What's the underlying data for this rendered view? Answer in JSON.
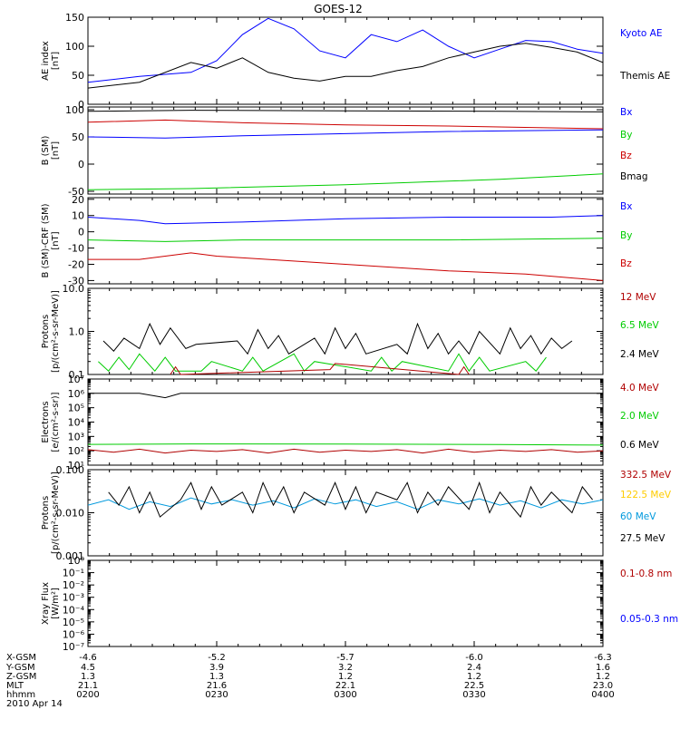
{
  "title": "GOES-12",
  "colors": {
    "black": "#000000",
    "blue": "#0000ff",
    "green": "#00cc00",
    "red": "#cc0000",
    "darkred": "#b00000",
    "orange": "#ffcc00",
    "cyan": "#0099dd"
  },
  "chart_data": [
    {
      "type": "line",
      "ylabel": [
        "AE index",
        "[nT]"
      ],
      "yscale": "linear",
      "ylim": [
        0,
        150
      ],
      "yticks": [
        {
          "v": 0,
          "t": "0"
        },
        {
          "v": 50,
          "t": "50"
        },
        {
          "v": 100,
          "t": "100"
        },
        {
          "v": 150,
          "t": "150"
        }
      ],
      "legend": [
        {
          "name": "Kyoto AE",
          "color": "#0000ff"
        },
        {
          "name": "Themis AE",
          "color": "#000000"
        }
      ],
      "series": [
        {
          "name": "Kyoto AE",
          "color": "#0000ff",
          "x": [
            0,
            0.1,
            0.2,
            0.25,
            0.3,
            0.35,
            0.4,
            0.45,
            0.5,
            0.55,
            0.6,
            0.65,
            0.7,
            0.75,
            0.8,
            0.85,
            0.9,
            0.95,
            1.0
          ],
          "y": [
            38,
            48,
            55,
            75,
            120,
            148,
            130,
            92,
            80,
            120,
            108,
            128,
            100,
            80,
            95,
            110,
            108,
            95,
            88
          ]
        },
        {
          "name": "Themis AE",
          "color": "#000000",
          "x": [
            0,
            0.1,
            0.2,
            0.25,
            0.3,
            0.35,
            0.4,
            0.45,
            0.5,
            0.55,
            0.6,
            0.65,
            0.7,
            0.75,
            0.8,
            0.85,
            0.9,
            0.95,
            1.0
          ],
          "y": [
            28,
            38,
            72,
            62,
            80,
            55,
            45,
            40,
            48,
            48,
            58,
            65,
            80,
            90,
            100,
            105,
            98,
            90,
            72
          ]
        }
      ]
    },
    {
      "type": "line",
      "ylabel": [
        "B (SM)",
        "[nT]"
      ],
      "yscale": "linear",
      "ylim": [
        -55,
        105
      ],
      "yticks": [
        {
          "v": -50,
          "t": "-50"
        },
        {
          "v": 0,
          "t": "0"
        },
        {
          "v": 50,
          "t": "50"
        },
        {
          "v": 100,
          "t": "100"
        }
      ],
      "legend": [
        {
          "name": "Bx",
          "color": "#0000ff"
        },
        {
          "name": "By",
          "color": "#00cc00"
        },
        {
          "name": "Bz",
          "color": "#cc0000"
        },
        {
          "name": "Bmag",
          "color": "#000000"
        }
      ],
      "series": [
        {
          "name": "Bmag",
          "color": "#000000",
          "x": [
            0,
            0.2,
            0.5,
            0.8,
            1.0
          ],
          "y": [
            97,
            99,
            98,
            97,
            96
          ]
        },
        {
          "name": "Bz",
          "color": "#cc0000",
          "x": [
            0,
            0.15,
            0.3,
            0.5,
            0.7,
            1.0
          ],
          "y": [
            77,
            81,
            76,
            72,
            70,
            65
          ]
        },
        {
          "name": "Bx",
          "color": "#0000ff",
          "x": [
            0,
            0.15,
            0.3,
            0.5,
            0.7,
            1.0
          ],
          "y": [
            50,
            48,
            52,
            56,
            60,
            63
          ]
        },
        {
          "name": "By",
          "color": "#00cc00",
          "x": [
            0,
            0.2,
            0.5,
            0.8,
            1.0
          ],
          "y": [
            -47,
            -45,
            -38,
            -28,
            -18
          ]
        }
      ]
    },
    {
      "type": "line",
      "ylabel": [
        "B (SM)-CRF (SM)",
        "[nT]"
      ],
      "yscale": "linear",
      "ylim": [
        -32,
        21
      ],
      "yticks": [
        {
          "v": -30,
          "t": "-30"
        },
        {
          "v": -20,
          "t": "-20"
        },
        {
          "v": -10,
          "t": "-10"
        },
        {
          "v": 0,
          "t": "0"
        },
        {
          "v": 10,
          "t": "10"
        },
        {
          "v": 20,
          "t": "20"
        }
      ],
      "legend": [
        {
          "name": "Bx",
          "color": "#0000ff"
        },
        {
          "name": "By",
          "color": "#00cc00"
        },
        {
          "name": "Bz",
          "color": "#cc0000"
        }
      ],
      "series": [
        {
          "name": "Bx",
          "color": "#0000ff",
          "x": [
            0,
            0.1,
            0.15,
            0.3,
            0.5,
            0.7,
            0.9,
            1.0
          ],
          "y": [
            9,
            7,
            5,
            6,
            8,
            9,
            9,
            10
          ]
        },
        {
          "name": "By",
          "color": "#00cc00",
          "x": [
            0,
            0.15,
            0.3,
            0.5,
            0.7,
            1.0
          ],
          "y": [
            -5,
            -6,
            -5,
            -5,
            -5,
            -4
          ]
        },
        {
          "name": "Bz",
          "color": "#cc0000",
          "x": [
            0,
            0.1,
            0.2,
            0.25,
            0.35,
            0.5,
            0.7,
            0.85,
            1.0
          ],
          "y": [
            -17,
            -17,
            -13,
            -15,
            -17,
            -20,
            -24,
            -26,
            -30
          ]
        }
      ]
    },
    {
      "type": "line",
      "ylabel": [
        "Protons",
        "[p/(cm²-s-sr-MeV)]"
      ],
      "yscale": "log",
      "ylim": [
        0.1,
        10
      ],
      "yticks": [
        {
          "v": 0.1,
          "t": "0.1"
        },
        {
          "v": 1,
          "t": "1.0"
        },
        {
          "v": 10,
          "t": "10.0"
        }
      ],
      "legend": [
        {
          "name": "12 MeV",
          "color": "#b00000"
        },
        {
          "name": "6.5 MeV",
          "color": "#00cc00"
        },
        {
          "name": "2.4 MeV",
          "color": "#000000"
        }
      ],
      "series": [
        {
          "name": "2.4 MeV",
          "color": "#000000",
          "x": [
            0.03,
            0.05,
            0.07,
            0.1,
            0.12,
            0.14,
            0.16,
            0.19,
            0.21,
            0.29,
            0.31,
            0.33,
            0.35,
            0.37,
            0.39,
            0.44,
            0.46,
            0.48,
            0.5,
            0.52,
            0.54,
            0.6,
            0.62,
            0.64,
            0.66,
            0.68,
            0.7,
            0.72,
            0.74,
            0.76,
            0.8,
            0.82,
            0.84,
            0.86,
            0.88,
            0.9,
            0.92,
            0.94
          ],
          "y": [
            0.6,
            0.35,
            0.7,
            0.4,
            1.5,
            0.5,
            1.2,
            0.4,
            0.5,
            0.6,
            0.3,
            1.1,
            0.4,
            0.8,
            0.3,
            0.7,
            0.3,
            1.2,
            0.4,
            0.9,
            0.3,
            0.5,
            0.3,
            1.5,
            0.4,
            0.9,
            0.3,
            0.6,
            0.3,
            1.0,
            0.3,
            1.2,
            0.4,
            0.8,
            0.3,
            0.7,
            0.4,
            0.6
          ]
        },
        {
          "name": "6.5 MeV",
          "color": "#00cc00",
          "x": [
            0.02,
            0.04,
            0.06,
            0.08,
            0.1,
            0.13,
            0.15,
            0.17,
            0.22,
            0.24,
            0.3,
            0.32,
            0.34,
            0.4,
            0.42,
            0.44,
            0.55,
            0.57,
            0.59,
            0.61,
            0.7,
            0.72,
            0.74,
            0.76,
            0.78,
            0.85,
            0.87,
            0.89
          ],
          "y": [
            0.2,
            0.12,
            0.25,
            0.13,
            0.3,
            0.12,
            0.25,
            0.12,
            0.12,
            0.2,
            0.12,
            0.25,
            0.12,
            0.3,
            0.12,
            0.2,
            0.12,
            0.25,
            0.12,
            0.2,
            0.12,
            0.3,
            0.12,
            0.25,
            0.12,
            0.2,
            0.12,
            0.25
          ]
        },
        {
          "name": "12 MeV",
          "color": "#b00000",
          "x": [
            0.16,
            0.17,
            0.18,
            0.47,
            0.48,
            0.72,
            0.73,
            0.74
          ],
          "y": [
            0.1,
            0.15,
            0.1,
            0.13,
            0.18,
            0.1,
            0.15,
            0.1
          ]
        }
      ]
    },
    {
      "type": "line",
      "ylabel": [
        "Electrons",
        "[e/(cm²-s-sr)]"
      ],
      "yscale": "log",
      "ylim": [
        10,
        10000000
      ],
      "yticks": [
        {
          "v": 10,
          "t": "10¹"
        },
        {
          "v": 100,
          "t": "10²"
        },
        {
          "v": 1000,
          "t": "10³"
        },
        {
          "v": 10000,
          "t": "10⁴"
        },
        {
          "v": 100000,
          "t": "10⁵"
        },
        {
          "v": 1000000,
          "t": "10⁶"
        },
        {
          "v": 10000000,
          "t": "10⁷"
        }
      ],
      "legend": [
        {
          "name": "4.0 MeV",
          "color": "#b00000"
        },
        {
          "name": "2.0 MeV",
          "color": "#00cc00"
        },
        {
          "name": "0.6 MeV",
          "color": "#000000"
        }
      ],
      "series": [
        {
          "name": "0.6 MeV",
          "color": "#000000",
          "x": [
            0,
            0.1,
            0.15,
            0.18,
            0.3,
            0.5,
            0.7,
            0.9,
            1.0
          ],
          "y": [
            1000000,
            1000000,
            500000,
            1000000,
            1000000,
            1000000,
            1000000,
            1000000,
            1000000
          ]
        },
        {
          "name": "2.0 MeV",
          "color": "#00cc00",
          "x": [
            0,
            0.2,
            0.5,
            0.8,
            1.0
          ],
          "y": [
            280,
            300,
            290,
            270,
            250
          ]
        },
        {
          "name": "4.0 MeV",
          "color": "#b00000",
          "x": [
            0,
            0.05,
            0.1,
            0.15,
            0.2,
            0.25,
            0.3,
            0.35,
            0.4,
            0.45,
            0.5,
            0.55,
            0.6,
            0.65,
            0.7,
            0.75,
            0.8,
            0.85,
            0.9,
            0.95,
            1.0
          ],
          "y": [
            120,
            80,
            130,
            70,
            110,
            90,
            120,
            70,
            130,
            80,
            110,
            90,
            120,
            70,
            130,
            80,
            110,
            90,
            120,
            80,
            100
          ]
        }
      ]
    },
    {
      "type": "line",
      "ylabel": [
        "Protons",
        "[p/(cm²-s-sr-MeV)]"
      ],
      "yscale": "log",
      "ylim": [
        0.001,
        0.1
      ],
      "yticks": [
        {
          "v": 0.001,
          "t": "0.001"
        },
        {
          "v": 0.01,
          "t": "0.010"
        },
        {
          "v": 0.1,
          "t": "0.100"
        }
      ],
      "legend": [
        {
          "name": "332.5 MeV",
          "color": "#b00000"
        },
        {
          "name": "122.5 MeV",
          "color": "#ffcc00"
        },
        {
          "name": "60 MeV",
          "color": "#0099dd"
        },
        {
          "name": "27.5 MeV",
          "color": "#000000"
        }
      ],
      "series": [
        {
          "name": "60 MeV",
          "color": "#0099dd",
          "x": [
            0,
            0.04,
            0.08,
            0.12,
            0.16,
            0.2,
            0.24,
            0.28,
            0.32,
            0.36,
            0.4,
            0.44,
            0.48,
            0.52,
            0.56,
            0.6,
            0.64,
            0.68,
            0.72,
            0.76,
            0.8,
            0.84,
            0.88,
            0.92,
            0.96,
            1.0
          ],
          "y": [
            0.015,
            0.02,
            0.012,
            0.018,
            0.014,
            0.022,
            0.016,
            0.02,
            0.015,
            0.019,
            0.013,
            0.021,
            0.016,
            0.02,
            0.014,
            0.018,
            0.012,
            0.02,
            0.016,
            0.021,
            0.015,
            0.019,
            0.013,
            0.02,
            0.016,
            0.02
          ]
        },
        {
          "name": "27.5 MeV",
          "color": "#000000",
          "x": [
            0.04,
            0.06,
            0.08,
            0.1,
            0.12,
            0.14,
            0.18,
            0.2,
            0.22,
            0.24,
            0.26,
            0.3,
            0.32,
            0.34,
            0.36,
            0.38,
            0.4,
            0.42,
            0.46,
            0.48,
            0.5,
            0.52,
            0.54,
            0.56,
            0.6,
            0.62,
            0.64,
            0.66,
            0.68,
            0.7,
            0.74,
            0.76,
            0.78,
            0.8,
            0.84,
            0.86,
            0.88,
            0.9,
            0.94,
            0.96,
            0.98
          ],
          "y": [
            0.03,
            0.015,
            0.04,
            0.01,
            0.03,
            0.008,
            0.02,
            0.05,
            0.012,
            0.04,
            0.015,
            0.03,
            0.01,
            0.05,
            0.015,
            0.04,
            0.01,
            0.03,
            0.015,
            0.05,
            0.012,
            0.04,
            0.01,
            0.03,
            0.02,
            0.05,
            0.01,
            0.03,
            0.015,
            0.04,
            0.012,
            0.05,
            0.01,
            0.03,
            0.008,
            0.04,
            0.015,
            0.03,
            0.01,
            0.04,
            0.02
          ]
        }
      ]
    },
    {
      "type": "line",
      "ylabel": [
        "Xray Flux",
        "[W/m²]"
      ],
      "yscale": "log",
      "ylim": [
        1e-07,
        1
      ],
      "yticks": [
        {
          "v": 1e-07,
          "t": "10⁻⁷"
        },
        {
          "v": 1e-06,
          "t": "10⁻⁶"
        },
        {
          "v": 1e-05,
          "t": "10⁻⁵"
        },
        {
          "v": 0.0001,
          "t": "10⁻⁴"
        },
        {
          "v": 0.001,
          "t": "10⁻³"
        },
        {
          "v": 0.01,
          "t": "10⁻²"
        },
        {
          "v": 0.1,
          "t": "10⁻¹"
        },
        {
          "v": 1,
          "t": "10⁰"
        }
      ],
      "legend": [
        {
          "name": "0.1-0.8 nm",
          "color": "#b00000"
        },
        {
          "name": "0.05-0.3 nm",
          "color": "#0000ff"
        }
      ],
      "series": []
    }
  ],
  "footer": {
    "row_labels": [
      "X-GSM",
      "Y-GSM",
      "Z-GSM",
      "MLT",
      "hhmm",
      "2010 Apr 14"
    ],
    "columns": [
      {
        "values": [
          "-4.6",
          "4.5",
          "1.3",
          "21.1",
          "0200"
        ]
      },
      {
        "values": [
          "-5.2",
          "3.9",
          "1.3",
          "21.6",
          "0230"
        ]
      },
      {
        "values": [
          "-5.7",
          "3.2",
          "1.2",
          "22.1",
          "0300"
        ]
      },
      {
        "values": [
          "-6.0",
          "2.4",
          "1.2",
          "22.5",
          "0330"
        ]
      },
      {
        "values": [
          "-6.3",
          "1.6",
          "1.2",
          "23.0",
          "0400"
        ]
      }
    ]
  }
}
